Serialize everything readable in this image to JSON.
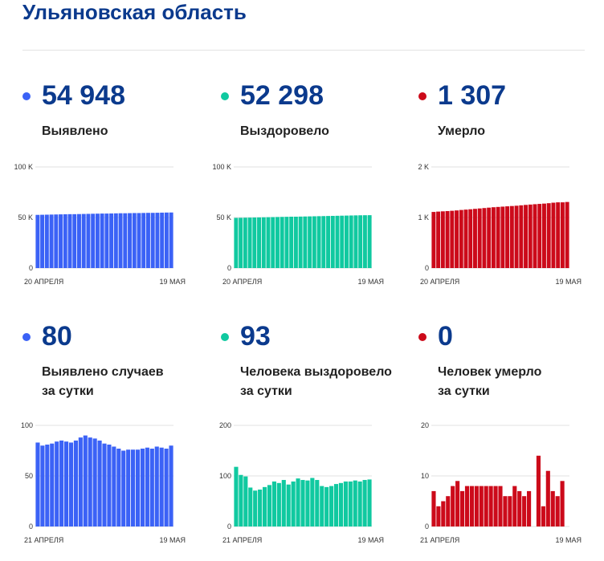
{
  "title": "Ульяновская область",
  "panels": [
    {
      "value": "54 948",
      "label": "Выявлено",
      "label2": "",
      "color": "#3b62f6"
    },
    {
      "value": "52 298",
      "label": "Выздоровело",
      "label2": "",
      "color": "#10c9a0"
    },
    {
      "value": "1 307",
      "label": "Умерло",
      "label2": "",
      "color": "#cc0a1a"
    },
    {
      "value": "80",
      "label": "Выявлено случаев",
      "label2": "за сутки",
      "color": "#3b62f6"
    },
    {
      "value": "93",
      "label": "Человека выздоровело",
      "label2": "за сутки",
      "color": "#10c9a0"
    },
    {
      "value": "0",
      "label": "Человек умерло",
      "label2": "за сутки",
      "color": "#cc0a1a"
    }
  ],
  "chart_data": [
    {
      "type": "bar",
      "x_start": "20 АПРЕЛЯ",
      "x_end": "19 МАЯ",
      "yticks": [
        "0",
        "50 K",
        "100 K"
      ],
      "ylim": [
        0,
        100000
      ],
      "color": "#3b62f6",
      "values": [
        52600,
        52700,
        52800,
        52900,
        53000,
        53100,
        53200,
        53300,
        53300,
        53400,
        53500,
        53600,
        53700,
        53800,
        53900,
        53900,
        54000,
        54100,
        54200,
        54200,
        54300,
        54400,
        54400,
        54500,
        54600,
        54600,
        54700,
        54800,
        54900,
        54948
      ]
    },
    {
      "type": "bar",
      "x_start": "20 АПРЕЛЯ",
      "x_end": "19 МАЯ",
      "yticks": [
        "0",
        "50 K",
        "100 K"
      ],
      "ylim": [
        0,
        100000
      ],
      "color": "#10c9a0",
      "values": [
        49600,
        49700,
        49800,
        49900,
        50000,
        50100,
        50200,
        50300,
        50400,
        50500,
        50600,
        50700,
        50800,
        50800,
        50900,
        51000,
        51100,
        51200,
        51300,
        51400,
        51500,
        51600,
        51700,
        51800,
        51900,
        52000,
        52100,
        52200,
        52250,
        52298
      ]
    },
    {
      "type": "bar",
      "x_start": "20 АПРЕЛЯ",
      "x_end": "19 МАЯ",
      "yticks": [
        "0",
        "1 K",
        "2 K"
      ],
      "ylim": [
        0,
        2000
      ],
      "color": "#cc0a1a",
      "values": [
        1110,
        1117,
        1122,
        1127,
        1133,
        1140,
        1149,
        1156,
        1163,
        1171,
        1179,
        1187,
        1195,
        1203,
        1209,
        1215,
        1221,
        1227,
        1233,
        1241,
        1249,
        1256,
        1263,
        1269,
        1275,
        1283,
        1293,
        1300,
        1300,
        1307
      ]
    },
    {
      "type": "bar",
      "x_start": "21 АПРЕЛЯ",
      "x_end": "19 МАЯ",
      "yticks": [
        "0",
        "50",
        "100"
      ],
      "ylim": [
        0,
        100
      ],
      "color": "#3b62f6",
      "values": [
        83,
        80,
        81,
        82,
        84,
        85,
        84,
        83,
        85,
        88,
        90,
        88,
        87,
        85,
        82,
        81,
        79,
        77,
        75,
        76,
        76,
        76,
        77,
        78,
        77,
        79,
        78,
        77,
        80
      ]
    },
    {
      "type": "bar",
      "x_start": "21 АПРЕЛЯ",
      "x_end": "19 МАЯ",
      "yticks": [
        "0",
        "100",
        "200"
      ],
      "ylim": [
        0,
        200
      ],
      "color": "#10c9a0",
      "values": [
        118,
        102,
        99,
        77,
        71,
        73,
        78,
        82,
        89,
        86,
        92,
        83,
        89,
        95,
        92,
        91,
        96,
        92,
        80,
        78,
        80,
        84,
        86,
        89,
        89,
        91,
        89,
        92,
        93
      ]
    },
    {
      "type": "bar",
      "x_start": "21 АПРЕЛЯ",
      "x_end": "19 МАЯ",
      "yticks": [
        "0",
        "10",
        "20"
      ],
      "ylim": [
        0,
        20
      ],
      "color": "#cc0a1a",
      "values": [
        7,
        4,
        5,
        6,
        8,
        9,
        7,
        8,
        8,
        8,
        8,
        8,
        8,
        8,
        8,
        6,
        6,
        8,
        7,
        6,
        7,
        0,
        14,
        4,
        11,
        7,
        6,
        9,
        0
      ]
    }
  ]
}
